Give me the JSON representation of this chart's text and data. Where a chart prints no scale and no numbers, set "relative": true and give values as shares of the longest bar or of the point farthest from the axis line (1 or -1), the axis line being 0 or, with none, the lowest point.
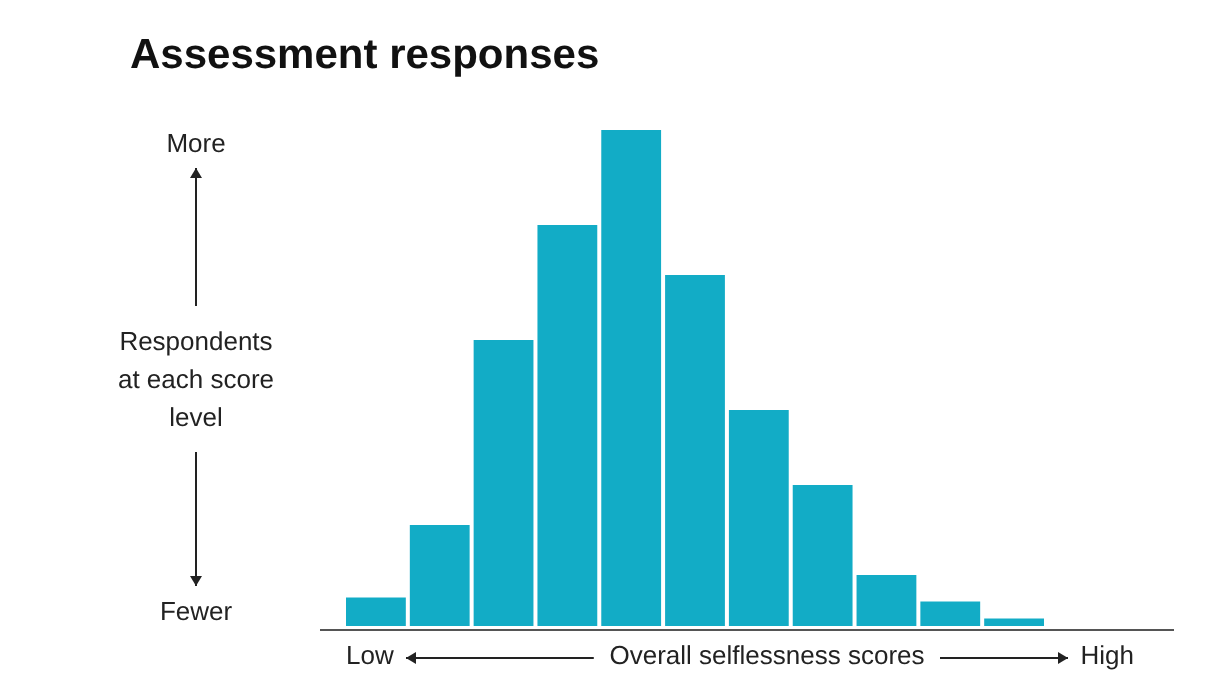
{
  "chart_data": {
    "type": "bar",
    "title": "Assessment responses",
    "xlabel": "Overall selflessness scores",
    "ylabel": "Respondents at each score level",
    "relative": true,
    "categories": [
      null,
      null,
      null,
      null,
      null,
      null,
      null,
      null,
      null,
      null,
      null
    ],
    "values": [
      0.065,
      0.21,
      0.58,
      0.81,
      1,
      0.71,
      0.44,
      0.29,
      0.11,
      0.057,
      0.023
    ],
    "color": "#12acc6",
    "grid": false,
    "annotations": [
      "Low",
      "High",
      "More",
      "Fewer"
    ]
  }
}
